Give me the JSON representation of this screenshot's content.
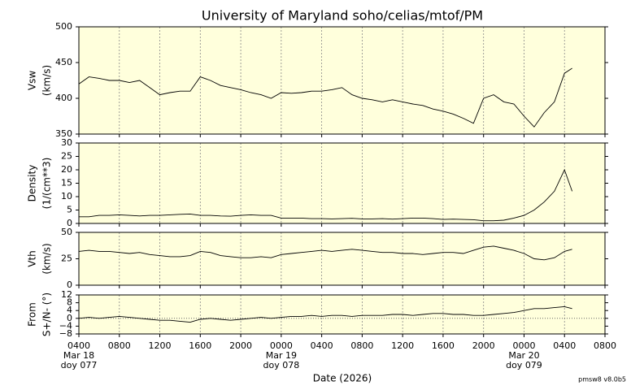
{
  "chart_data": {
    "type": "line",
    "title": "University of Maryland  soho/celias/mtof/PM",
    "xlabel": "Date (2026)",
    "footer": "pmsw8 v8.0b5",
    "grid": true,
    "xlim": [
      "2026-03-18 04:00",
      "2026-03-20 08:00"
    ],
    "xticks": [
      {
        "value": "2026-03-18 04:00",
        "label": "0400"
      },
      {
        "value": "2026-03-18 08:00",
        "label": "0800"
      },
      {
        "value": "2026-03-18 12:00",
        "label": "1200"
      },
      {
        "value": "2026-03-18 16:00",
        "label": "1600"
      },
      {
        "value": "2026-03-18 20:00",
        "label": "2000"
      },
      {
        "value": "2026-03-19 00:00",
        "label": "0000"
      },
      {
        "value": "2026-03-19 04:00",
        "label": "0400"
      },
      {
        "value": "2026-03-19 08:00",
        "label": "0800"
      },
      {
        "value": "2026-03-19 12:00",
        "label": "1200"
      },
      {
        "value": "2026-03-19 16:00",
        "label": "1600"
      },
      {
        "value": "2026-03-19 20:00",
        "label": "2000"
      },
      {
        "value": "2026-03-20 00:00",
        "label": "0000"
      },
      {
        "value": "2026-03-20 04:00",
        "label": "0400"
      },
      {
        "value": "2026-03-20 08:00",
        "label": "0800"
      }
    ],
    "day_labels": [
      {
        "x": "2026-03-18 04:00",
        "date": "Mar 18",
        "doy": "doy 077"
      },
      {
        "x": "2026-03-19 00:00",
        "date": "Mar 19",
        "doy": "doy 078"
      },
      {
        "x": "2026-03-20 00:00",
        "date": "Mar 20",
        "doy": "doy 079"
      }
    ],
    "x": [
      "2026-03-18 04:00",
      "2026-03-18 05:00",
      "2026-03-18 06:00",
      "2026-03-18 07:00",
      "2026-03-18 08:00",
      "2026-03-18 09:00",
      "2026-03-18 10:00",
      "2026-03-18 11:00",
      "2026-03-18 12:00",
      "2026-03-18 13:00",
      "2026-03-18 14:00",
      "2026-03-18 15:00",
      "2026-03-18 16:00",
      "2026-03-18 17:00",
      "2026-03-18 18:00",
      "2026-03-18 19:00",
      "2026-03-18 20:00",
      "2026-03-18 21:00",
      "2026-03-18 22:00",
      "2026-03-18 23:00",
      "2026-03-19 00:00",
      "2026-03-19 01:00",
      "2026-03-19 02:00",
      "2026-03-19 03:00",
      "2026-03-19 04:00",
      "2026-03-19 05:00",
      "2026-03-19 06:00",
      "2026-03-19 07:00",
      "2026-03-19 08:00",
      "2026-03-19 09:00",
      "2026-03-19 10:00",
      "2026-03-19 11:00",
      "2026-03-19 12:00",
      "2026-03-19 13:00",
      "2026-03-19 14:00",
      "2026-03-19 15:00",
      "2026-03-19 16:00",
      "2026-03-19 17:00",
      "2026-03-19 18:00",
      "2026-03-19 19:00",
      "2026-03-19 20:00",
      "2026-03-19 21:00",
      "2026-03-19 22:00",
      "2026-03-19 23:00",
      "2026-03-20 00:00",
      "2026-03-20 01:00",
      "2026-03-20 02:00",
      "2026-03-20 03:00",
      "2026-03-20 04:00",
      "2026-03-20 04:45"
    ],
    "panels": [
      {
        "ylabel": [
          "Vsw",
          "(km/s)"
        ],
        "color": "#000000",
        "ylim": [
          350,
          500
        ],
        "yticks": [
          350,
          400,
          450,
          500
        ],
        "values": [
          420,
          430,
          428,
          425,
          425,
          422,
          425,
          415,
          405,
          408,
          410,
          410,
          430,
          425,
          418,
          415,
          412,
          408,
          405,
          400,
          408,
          407,
          408,
          410,
          410,
          412,
          415,
          405,
          400,
          398,
          395,
          398,
          395,
          392,
          390,
          385,
          382,
          378,
          372,
          365,
          400,
          405,
          395,
          392,
          375,
          360,
          380,
          395,
          435,
          442
        ]
      },
      {
        "ylabel": [
          "Density",
          "(1/(cm**3)"
        ],
        "color": "#000000",
        "ylim": [
          0,
          30
        ],
        "yticks": [
          0,
          5,
          10,
          15,
          20,
          25,
          30
        ],
        "values": [
          2.5,
          2.5,
          3,
          3,
          3.2,
          3,
          2.8,
          3,
          3,
          3.2,
          3.4,
          3.5,
          3,
          3,
          2.8,
          2.7,
          3,
          3.2,
          3,
          3,
          2,
          2,
          2,
          1.8,
          1.8,
          1.7,
          1.8,
          1.9,
          1.7,
          1.7,
          1.8,
          1.6,
          1.8,
          2,
          2,
          1.8,
          1.5,
          1.6,
          1.5,
          1.4,
          1,
          1,
          1.2,
          2,
          3,
          5,
          8,
          12,
          20,
          12
        ]
      },
      {
        "ylabel": [
          "Vth",
          "(km/s)"
        ],
        "color": "#000000",
        "ylim": [
          0,
          50
        ],
        "yticks": [
          0,
          25,
          50
        ],
        "values": [
          32,
          33,
          32,
          32,
          31,
          30,
          31,
          29,
          28,
          27,
          27,
          28,
          32,
          31,
          28,
          27,
          26,
          26,
          27,
          26,
          29,
          30,
          31,
          32,
          33,
          32,
          33,
          34,
          33,
          32,
          31,
          31,
          30,
          30,
          29,
          30,
          31,
          31,
          30,
          33,
          36,
          37,
          35,
          33,
          30,
          25,
          24,
          26,
          32,
          34
        ]
      },
      {
        "ylabel": [
          "From",
          "S+/N- (°)"
        ],
        "color": "#000000",
        "ylim": [
          -8,
          12
        ],
        "zero_line": true,
        "yticks": [
          {
            "value": -8,
            "label": "−8"
          },
          {
            "value": -4,
            "label": "−4"
          },
          0,
          4,
          8,
          12
        ],
        "values": [
          0,
          0.5,
          0,
          0.5,
          1,
          0.5,
          0,
          -0.5,
          -1,
          -1,
          -1.5,
          -2,
          -0.5,
          0,
          -0.5,
          -1,
          -0.5,
          0,
          0.5,
          0,
          0.5,
          1,
          1,
          1.5,
          1,
          1.5,
          1.5,
          1,
          1.5,
          1.5,
          1.5,
          2,
          2,
          1.5,
          2,
          2.5,
          2.5,
          2,
          2,
          1.5,
          1.5,
          2,
          2.5,
          3,
          4,
          5,
          5,
          5.5,
          6,
          5
        ]
      }
    ]
  }
}
